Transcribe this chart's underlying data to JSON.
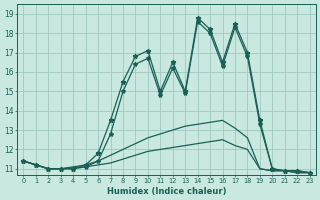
{
  "xlabel": "Humidex (Indice chaleur)",
  "xlim": [
    -0.5,
    23.5
  ],
  "ylim": [
    10.7,
    19.5
  ],
  "xticks": [
    0,
    1,
    2,
    3,
    4,
    5,
    6,
    7,
    8,
    9,
    10,
    11,
    12,
    13,
    14,
    15,
    16,
    17,
    18,
    19,
    20,
    21,
    22,
    23
  ],
  "yticks": [
    11,
    12,
    13,
    14,
    15,
    16,
    17,
    18,
    19
  ],
  "bg_color": "#c8e8e0",
  "grid_color": "#a0c8c0",
  "line_color": "#1a6055",
  "curves": [
    {
      "x": [
        0,
        1,
        2,
        3,
        4,
        5,
        6,
        7,
        8,
        9,
        10,
        11,
        12,
        13,
        14,
        15,
        16,
        17,
        18,
        19,
        20,
        21,
        22,
        23
      ],
      "y": [
        11.4,
        11.2,
        11.0,
        11.0,
        11.0,
        11.2,
        11.8,
        13.5,
        15.5,
        16.8,
        17.1,
        15.0,
        16.5,
        15.0,
        18.8,
        18.2,
        16.5,
        18.5,
        17.0,
        13.5,
        11.0,
        10.9,
        10.9,
        10.8
      ],
      "marker": "*",
      "linestyle": "-",
      "markersize": 3.5,
      "lw": 0.9
    },
    {
      "x": [
        0,
        1,
        2,
        3,
        4,
        5,
        6,
        7,
        8,
        9,
        10,
        11,
        12,
        13,
        14,
        15,
        16,
        17,
        18,
        19,
        20,
        21,
        22,
        23
      ],
      "y": [
        11.4,
        11.2,
        11.0,
        11.0,
        11.0,
        11.1,
        11.4,
        12.8,
        15.0,
        16.4,
        16.7,
        14.8,
        16.2,
        14.9,
        18.6,
        18.0,
        16.3,
        18.3,
        16.8,
        13.3,
        11.0,
        10.9,
        10.9,
        10.8
      ],
      "marker": "*",
      "linestyle": "-",
      "markersize": 3.0,
      "lw": 0.9
    },
    {
      "x": [
        0,
        2,
        3,
        4,
        5,
        6,
        7,
        8,
        9,
        10,
        11,
        12,
        13,
        14,
        15,
        16,
        17,
        18,
        19,
        20,
        21,
        22,
        23
      ],
      "y": [
        11.4,
        11.0,
        11.0,
        11.1,
        11.2,
        11.4,
        11.7,
        12.0,
        12.3,
        12.6,
        12.8,
        13.0,
        13.2,
        13.3,
        13.4,
        13.5,
        13.1,
        12.6,
        11.0,
        10.9,
        10.9,
        10.8,
        10.8
      ],
      "marker": null,
      "linestyle": "-",
      "markersize": 0,
      "lw": 0.9
    },
    {
      "x": [
        0,
        2,
        3,
        4,
        5,
        6,
        7,
        8,
        9,
        10,
        11,
        12,
        13,
        14,
        15,
        16,
        17,
        18,
        19,
        20,
        21,
        22,
        23
      ],
      "y": [
        11.4,
        11.0,
        11.0,
        11.05,
        11.1,
        11.2,
        11.3,
        11.5,
        11.7,
        11.9,
        12.0,
        12.1,
        12.2,
        12.3,
        12.4,
        12.5,
        12.2,
        12.0,
        11.0,
        10.9,
        10.9,
        10.8,
        10.8
      ],
      "marker": null,
      "linestyle": "-",
      "markersize": 0,
      "lw": 0.9
    }
  ]
}
